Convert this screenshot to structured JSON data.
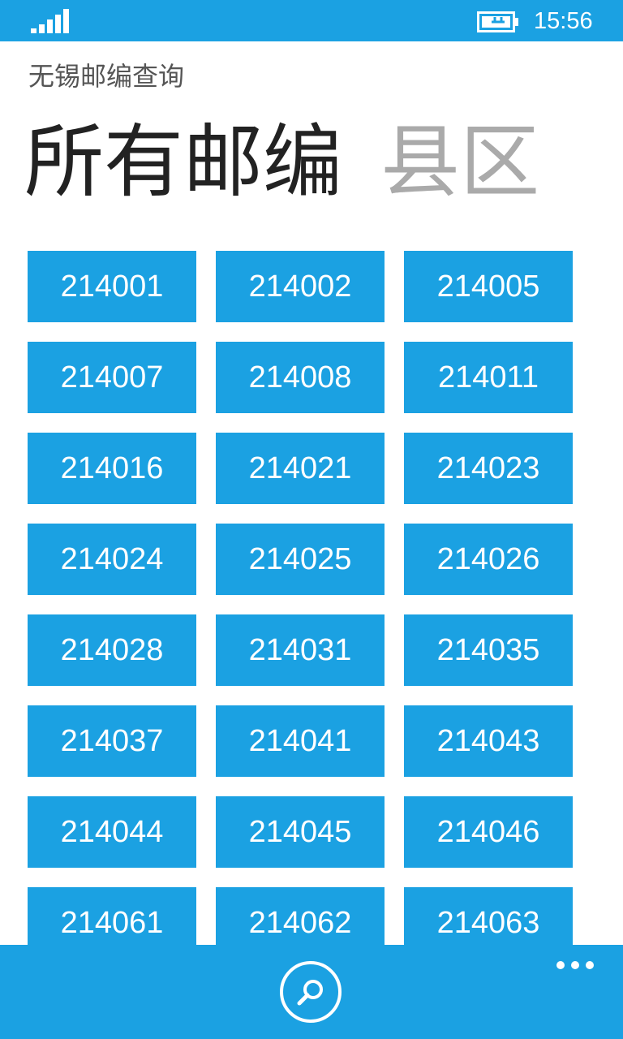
{
  "status_bar": {
    "time": "15:56",
    "signal_bars": 5,
    "icons": [
      "signal-strength-icon",
      "battery-charging-icon"
    ]
  },
  "app": {
    "title": "无锡邮编查询"
  },
  "pivot": {
    "tabs": [
      {
        "label": "所有邮编",
        "active": true
      },
      {
        "label": "县区",
        "active": false
      }
    ]
  },
  "postcodes": [
    "214001",
    "214002",
    "214005",
    "214007",
    "214008",
    "214011",
    "214016",
    "214021",
    "214023",
    "214024",
    "214025",
    "214026",
    "214028",
    "214031",
    "214035",
    "214037",
    "214041",
    "214043",
    "214044",
    "214045",
    "214046",
    "214061",
    "214062",
    "214063"
  ],
  "app_bar": {
    "buttons": [
      "search-icon"
    ],
    "menu": "ellipsis-icon"
  },
  "colors": {
    "accent": "#1ba1e2",
    "background": "#ffffff",
    "tile_text": "#ffffff",
    "active_tab": "#222222",
    "inactive_tab": "#aaaaaa"
  }
}
